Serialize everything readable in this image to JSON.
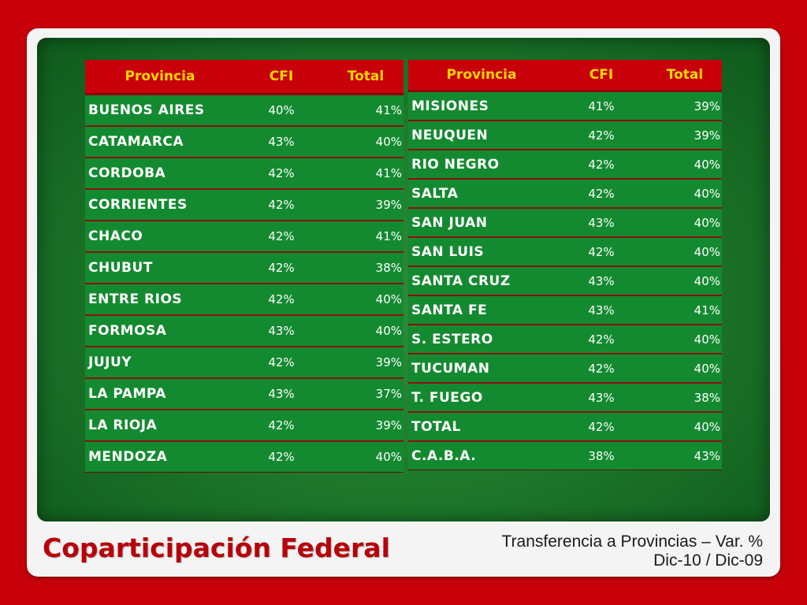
{
  "title": "Coparticipación Federal",
  "subtitle_line1": "Transferencia a Provincias – Var. %",
  "subtitle_line2": "Dic-10 / Dic-09",
  "headers": {
    "provincia": "Provincia",
    "cfi": "CFI",
    "total": "Total"
  },
  "left_table": [
    {
      "provincia": "BUENOS AIRES",
      "cfi": "40%",
      "total": "41%"
    },
    {
      "provincia": "CATAMARCA",
      "cfi": "43%",
      "total": "40%"
    },
    {
      "provincia": "CORDOBA",
      "cfi": "42%",
      "total": "41%"
    },
    {
      "provincia": "CORRIENTES",
      "cfi": "42%",
      "total": "39%"
    },
    {
      "provincia": "CHACO",
      "cfi": "42%",
      "total": "41%"
    },
    {
      "provincia": "CHUBUT",
      "cfi": "42%",
      "total": "38%"
    },
    {
      "provincia": "ENTRE RIOS",
      "cfi": "42%",
      "total": "40%"
    },
    {
      "provincia": "FORMOSA",
      "cfi": "43%",
      "total": "40%"
    },
    {
      "provincia": "JUJUY",
      "cfi": "42%",
      "total": "39%"
    },
    {
      "provincia": "LA PAMPA",
      "cfi": "43%",
      "total": "37%"
    },
    {
      "provincia": "LA RIOJA",
      "cfi": "42%",
      "total": "39%"
    },
    {
      "provincia": "MENDOZA",
      "cfi": "42%",
      "total": "40%"
    }
  ],
  "right_table": [
    {
      "provincia": "MISIONES",
      "cfi": "41%",
      "total": "39%"
    },
    {
      "provincia": "NEUQUEN",
      "cfi": "42%",
      "total": "39%"
    },
    {
      "provincia": "RIO NEGRO",
      "cfi": "42%",
      "total": "40%"
    },
    {
      "provincia": "SALTA",
      "cfi": "42%",
      "total": "40%"
    },
    {
      "provincia": "SAN JUAN",
      "cfi": "43%",
      "total": "40%"
    },
    {
      "provincia": "SAN LUIS",
      "cfi": "42%",
      "total": "40%"
    },
    {
      "provincia": "SANTA CRUZ",
      "cfi": "43%",
      "total": "40%"
    },
    {
      "provincia": "SANTA FE",
      "cfi": "43%",
      "total": "41%"
    },
    {
      "provincia": "S. ESTERO",
      "cfi": "42%",
      "total": "40%"
    },
    {
      "provincia": "TUCUMAN",
      "cfi": "42%",
      "total": "40%"
    },
    {
      "provincia": "T. FUEGO",
      "cfi": "43%",
      "total": "38%"
    },
    {
      "provincia": "TOTAL",
      "cfi": "42%",
      "total": "40%"
    },
    {
      "provincia": "C.A.B.A.",
      "cfi": "38%",
      "total": "43%"
    }
  ],
  "colors": {
    "background_red": "#c8000a",
    "panel_green": "#1f7a2c",
    "header_text": "#ffd700"
  }
}
